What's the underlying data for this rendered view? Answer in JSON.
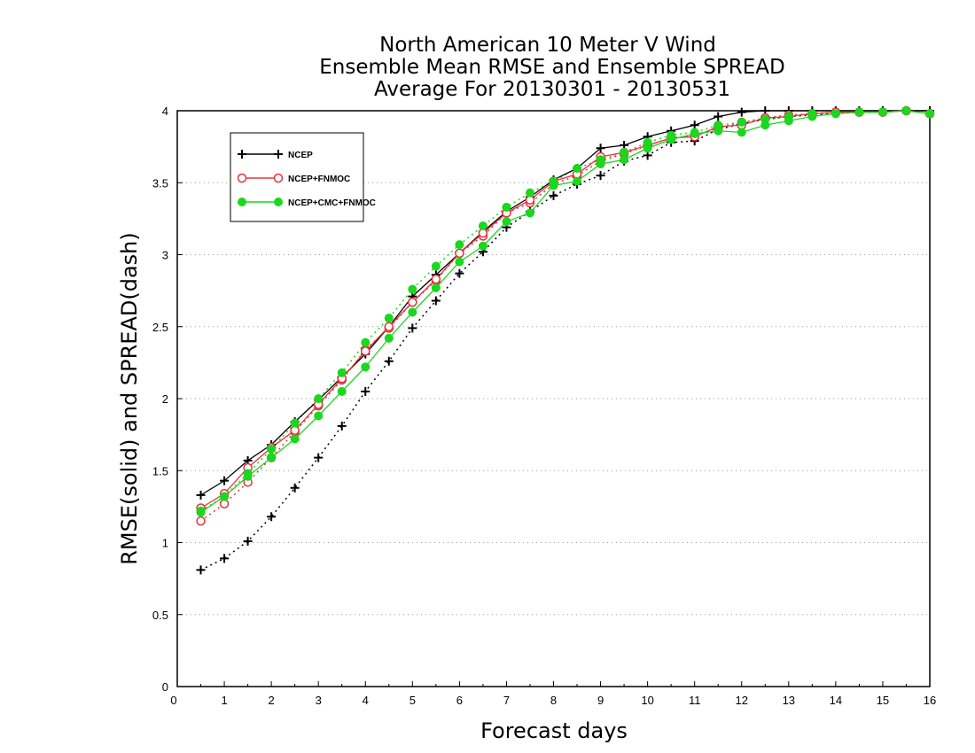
{
  "chart_data": {
    "type": "line",
    "title_lines": [
      "North American 10 Meter V Wind",
      "Ensemble Mean RMSE and Ensemble SPREAD",
      "Average For 20130301 - 20130531"
    ],
    "xlabel": "Forecast days",
    "ylabel": "RMSE(solid) and SPREAD(dash)",
    "xlim": [
      0,
      16
    ],
    "ylim": [
      0,
      4
    ],
    "xticks": [
      "0",
      "1",
      "2",
      "3",
      "4",
      "5",
      "6",
      "7",
      "8",
      "9",
      "10",
      "11",
      "12",
      "13",
      "14",
      "15",
      "16"
    ],
    "yticks": [
      "0",
      "0.5",
      "1",
      "1.5",
      "2",
      "2.5",
      "3",
      "3.5",
      "4"
    ],
    "grid": "horizontal dotted",
    "legend_position": "top-left",
    "x": [
      0.5,
      1,
      1.5,
      2,
      2.5,
      3,
      3.5,
      4,
      4.5,
      5,
      5.5,
      6,
      6.5,
      7,
      7.5,
      8,
      8.5,
      9,
      9.5,
      10,
      10.5,
      11,
      11.5,
      12,
      12.5,
      13,
      13.5,
      14,
      14.5,
      15,
      15.5,
      16
    ],
    "series": [
      {
        "name": "NCEP",
        "color": "#000000",
        "marker": "plus",
        "rmse": [
          1.33,
          1.43,
          1.57,
          1.68,
          1.84,
          1.99,
          2.15,
          2.31,
          2.5,
          2.71,
          2.86,
          3.01,
          3.16,
          3.3,
          3.4,
          3.52,
          3.6,
          3.74,
          3.76,
          3.82,
          3.86,
          3.9,
          3.96,
          3.99,
          4.0,
          4.0,
          4.0,
          4.0,
          4.0,
          4.0,
          4.0,
          4.0
        ],
        "spread": [
          0.81,
          0.89,
          1.01,
          1.18,
          1.38,
          1.59,
          1.81,
          2.05,
          2.26,
          2.49,
          2.68,
          2.87,
          3.02,
          3.19,
          3.3,
          3.41,
          3.49,
          3.55,
          3.65,
          3.69,
          3.78,
          3.79,
          3.87,
          3.91,
          3.94,
          3.96,
          3.97,
          3.98,
          3.99,
          3.99,
          4.0,
          4.0
        ]
      },
      {
        "name": "NCEP+FNMOC",
        "color": "#e8303a",
        "marker": "open-circle",
        "rmse": [
          1.24,
          1.34,
          1.52,
          1.66,
          1.78,
          1.96,
          2.14,
          2.33,
          2.5,
          2.67,
          2.83,
          3.01,
          3.15,
          3.29,
          3.38,
          3.51,
          3.56,
          3.68,
          3.71,
          3.76,
          3.81,
          3.82,
          3.89,
          3.9,
          3.95,
          3.96,
          3.98,
          3.99,
          3.99,
          3.99,
          4.0,
          3.98
        ],
        "spread": [
          1.15,
          1.27,
          1.42,
          1.59,
          1.77,
          1.95,
          2.13,
          2.34,
          2.49,
          2.67,
          2.82,
          3.01,
          3.13,
          3.29,
          3.36,
          3.49,
          3.55,
          3.65,
          3.7,
          3.76,
          3.81,
          3.83,
          3.88,
          3.92,
          3.95,
          3.97,
          3.98,
          3.99,
          3.99,
          3.99,
          4.0,
          3.98
        ]
      },
      {
        "name": "NCEP+CMC+FNMOC",
        "color": "#19d81e",
        "marker": "filled-circle",
        "rmse": [
          1.21,
          1.32,
          1.46,
          1.59,
          1.72,
          1.88,
          2.05,
          2.22,
          2.42,
          2.6,
          2.77,
          2.95,
          3.06,
          3.23,
          3.29,
          3.48,
          3.51,
          3.63,
          3.66,
          3.74,
          3.8,
          3.84,
          3.86,
          3.85,
          3.9,
          3.93,
          3.96,
          3.98,
          3.99,
          3.99,
          4.0,
          3.98
        ],
        "spread": [
          1.22,
          1.32,
          1.48,
          1.65,
          1.83,
          2.0,
          2.18,
          2.39,
          2.56,
          2.76,
          2.92,
          3.07,
          3.2,
          3.33,
          3.43,
          3.51,
          3.6,
          3.66,
          3.71,
          3.78,
          3.83,
          3.85,
          3.9,
          3.92,
          3.94,
          3.96,
          3.98,
          3.98,
          3.99,
          3.99,
          4.0,
          3.98
        ]
      }
    ]
  }
}
